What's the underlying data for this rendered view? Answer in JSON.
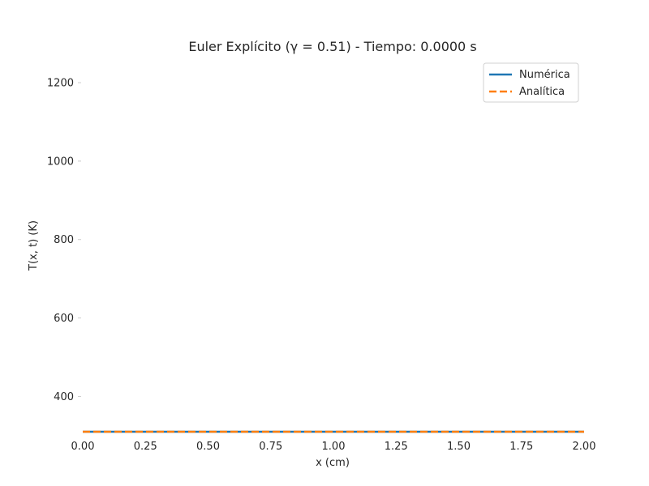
{
  "chart_data": {
    "type": "line",
    "title": "Euler Explícito (γ = 0.51) - Tiempo: 0.0000 s",
    "xlabel": "x (cm)",
    "ylabel": "T(x, t) (K)",
    "xlim": [
      0.0,
      2.0
    ],
    "ylim": [
      310,
      1260
    ],
    "xticks": [
      0.0,
      0.25,
      0.5,
      0.75,
      1.0,
      1.25,
      1.5,
      1.75,
      2.0
    ],
    "xtick_labels": [
      "0.00",
      "0.25",
      "0.50",
      "0.75",
      "1.00",
      "1.25",
      "1.50",
      "1.75",
      "2.00"
    ],
    "yticks": [
      400,
      600,
      800,
      1000,
      1200
    ],
    "ytick_labels": [
      "400",
      "600",
      "800",
      "1000",
      "1200"
    ],
    "grid": false,
    "legend_position": "top-right",
    "series": [
      {
        "name": "Numérica",
        "style": "solid",
        "color": "#1f77b4",
        "x": [
          0.0,
          0.25,
          0.5,
          0.75,
          1.0,
          1.25,
          1.5,
          1.75,
          2.0
        ],
        "y": [
          310,
          310,
          310,
          310,
          310,
          310,
          310,
          310,
          310
        ]
      },
      {
        "name": "Analítica",
        "style": "dashed",
        "color": "#ff7f0e",
        "x": [
          0.0,
          0.25,
          0.5,
          0.75,
          1.0,
          1.25,
          1.5,
          1.75,
          2.0
        ],
        "y": [
          310,
          310,
          310,
          310,
          310,
          310,
          310,
          310,
          310
        ]
      }
    ]
  }
}
